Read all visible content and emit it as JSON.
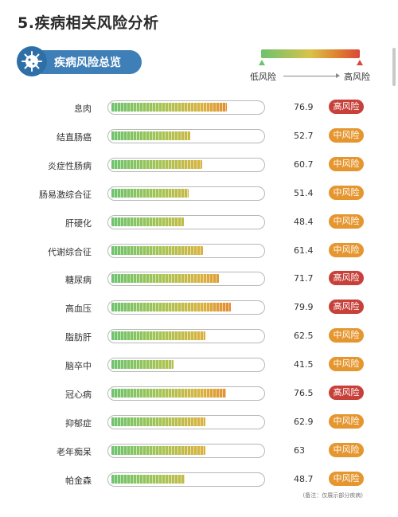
{
  "title": "5.疾病相关风险分析",
  "section": {
    "label": "疾病风险总览",
    "icon": "virus-icon"
  },
  "legend": {
    "low_label": "低风险",
    "high_label": "高风险",
    "gradient": [
      "#6cc36e",
      "#d9c24a",
      "#e07a2e",
      "#d8483a"
    ]
  },
  "colors": {
    "high_badge": "#c7413a",
    "mid_badge": "#e5962f",
    "accent": "#3f7fb8"
  },
  "chart_data": {
    "type": "bar",
    "orientation": "horizontal",
    "xlim": [
      0,
      100
    ],
    "categories": [
      "息肉",
      "结直肠癌",
      "炎症性肠病",
      "肠易激综合征",
      "肝硬化",
      "代谢综合征",
      "糖尿病",
      "高血压",
      "脂肪肝",
      "脑卒中",
      "冠心病",
      "抑郁症",
      "老年痴呆",
      "帕金森"
    ],
    "values": [
      76.9,
      52.7,
      60.7,
      51.4,
      48.4,
      61.4,
      71.7,
      79.9,
      62.5,
      41.5,
      76.5,
      62.9,
      63,
      48.7
    ],
    "value_labels": [
      "76.9",
      "52.7",
      "60.7",
      "51.4",
      "48.4",
      "61.4",
      "71.7",
      "79.9",
      "62.5",
      "41.5",
      "76.5",
      "62.9",
      "63",
      "48.7"
    ],
    "risk_levels": [
      "高风险",
      "中风险",
      "中风险",
      "中风险",
      "中风险",
      "中风险",
      "高风险",
      "高风险",
      "中风险",
      "中风险",
      "高风险",
      "中风险",
      "中风险",
      "中风险"
    ]
  },
  "footnote": "(备注：仅展示部分疾病)"
}
